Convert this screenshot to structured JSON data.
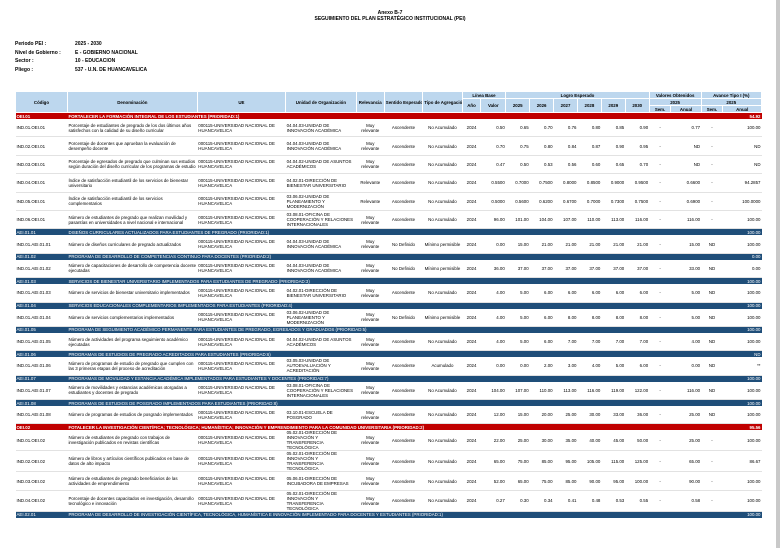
{
  "header": {
    "annex": "Anexo B-7",
    "title": "SEGUIMIENTO DEL PLAN ESTRATÉGICO INSTITUCIONAL (PEI)"
  },
  "meta": [
    {
      "k": "Periodo PEI :",
      "v": "2025 - 2030"
    },
    {
      "k": "Nivel de Gobierno :",
      "v": "E - GOBIERNO NACIONAL"
    },
    {
      "k": "Sector :",
      "v": "10 - EDUCACION"
    },
    {
      "k": "Pliego :",
      "v": "537 - U.N. DE HUANCAVELICA"
    }
  ],
  "columns": {
    "codigo": "Código",
    "denominacion": "Denominación",
    "ue": "UE",
    "unidad": "Unidad de Organización",
    "relevancia": "Relevancia",
    "sentido": "Sentido Esperado",
    "tipo": "Tipo de Agregación",
    "linea_base": "Línea Base",
    "anio": "Año",
    "valor": "Valor",
    "logro": "Logro Esperado",
    "years": [
      "2025",
      "2026",
      "2027",
      "2028",
      "2029",
      "2030"
    ],
    "valores_obtenidos": "Valores Obtenidos",
    "avance": "Avance Tipo I (%)",
    "y2025a": "2025",
    "y2025b": "2025",
    "sem": "Sem.",
    "anual": "Anual",
    "sem2": "Sem.",
    "anual2": "Anual"
  },
  "rows": [
    {
      "t": "sec",
      "code": "OEI.01",
      "text": "FORTALECER LA FORMACIÓN INTEGRAL DE LOS ESTUDIANTES (PRIORIDAD:1)",
      "last": "54.92"
    },
    {
      "t": "row",
      "code": "IND.01.OEI.01",
      "den": "Porcentaje de estudiantes de pregrado de los dos últimos años satisfechos con la calidad de su diseño curricular",
      "ue": "000115-UNIVERSIDAD NACIONAL DE HUANCAVELICA",
      "uo": "04.04.03-UNIDAD DE INNOVACIÓN ACADÉMICA",
      "rel": "Muy relevante",
      "sen": "Ascendente",
      "tipo": "No Acumulado",
      "anio": "2024",
      "val": "0.50",
      "v": [
        "0.65",
        "0.70",
        "0.76",
        "0.80",
        "0.85",
        "0.90"
      ],
      "s1": "-",
      "a1": "0.77",
      "s2": "-",
      "a2": "100.00"
    },
    {
      "t": "row",
      "code": "IND.02.OEI.01",
      "den": "Porcentaje de docentes que aprueban la evaluación de desempeño docente",
      "ue": "000115-UNIVERSIDAD NACIONAL DE HUANCAVELICA",
      "uo": "04.04.03-UNIDAD DE INNOVACIÓN ACADÉMICA",
      "rel": "Muy relevante",
      "sen": "Ascendente",
      "tipo": "No Acumulado",
      "anio": "2024",
      "val": "0.70",
      "v": [
        "0.75",
        "0.80",
        "0.84",
        "0.87",
        "0.90",
        "0.95"
      ],
      "s1": "-",
      "a1": "ND",
      "s2": "-",
      "a2": "ND"
    },
    {
      "t": "row",
      "code": "IND.03.OEI.01",
      "den": "Porcentaje de egresados de pregrado que culminan sus estudios según duración del diseño curricular de los programas de estudio",
      "ue": "000115-UNIVERSIDAD NACIONAL DE HUANCAVELICA",
      "uo": "04.04.02-UNIDAD DE ASUNTOS ACADÉMICOS",
      "rel": "Muy relevante",
      "sen": "Ascendente",
      "tipo": "No Acumulado",
      "anio": "2024",
      "val": "0.47",
      "v": [
        "0.50",
        "0.53",
        "0.56",
        "0.60",
        "0.65",
        "0.70"
      ],
      "s1": "-",
      "a1": "ND",
      "s2": "-",
      "a2": "ND"
    },
    {
      "t": "row",
      "code": "IND.04.OEI.01",
      "den": "Índice de satisfacción estudiantil de los servicios de bienestar universitario",
      "ue": "000115-UNIVERSIDAD NACIONAL DE HUANCAVELICA",
      "uo": "04.02.01-DIRECCIÓN DE BIENESTAR UNIVERSITARIO",
      "rel": "Relevante",
      "sen": "Ascendente",
      "tipo": "No Acumulado",
      "anio": "2024",
      "val": "0.5500",
      "v": [
        "0.7000",
        "0.7500",
        "0.8000",
        "0.8500",
        "0.9000",
        "0.9500"
      ],
      "s1": "-",
      "a1": "0.6600",
      "s2": "-",
      "a2": "94.2857"
    },
    {
      "t": "row",
      "code": "IND.05.OEI.01",
      "den": "Índice de satisfacción estudiantil de los servicios complementarios",
      "ue": "000115-UNIVERSIDAD NACIONAL DE HUANCAVELICA",
      "uo": "03.06.02-UNIDAD DE PLANEAMIENTO Y MODERNIZACIÓN",
      "rel": "Relevante",
      "sen": "Ascendente",
      "tipo": "No Acumulado",
      "anio": "2024",
      "val": "0.5000",
      "v": [
        "0.5600",
        "0.6200",
        "0.6700",
        "0.7000",
        "0.7300",
        "0.7500"
      ],
      "s1": "-",
      "a1": "0.6900",
      "s2": "-",
      "a2": "100.0000"
    },
    {
      "t": "row",
      "code": "IND.06.OEI.01",
      "den": "Número de estudiantes de pregrado que realizan movilidad y pasantías en universidades a nivel nacional e internacional",
      "ue": "000115-UNIVERSIDAD NACIONAL DE HUANCAVELICA",
      "uo": "03.08.01-OFICINA DE COOPERACIÓN Y RELACIONES INTERNACIONALES",
      "rel": "Muy relevante",
      "sen": "Ascendente",
      "tipo": "No Acumulado",
      "anio": "2024",
      "val": "96.00",
      "v": [
        "101.00",
        "104.00",
        "107.00",
        "110.00",
        "113.00",
        "116.00"
      ],
      "s1": "-",
      "a1": "116.00",
      "s2": "-",
      "a2": "100.00"
    },
    {
      "t": "aei",
      "code": "AEI.01.01",
      "text": "DISEÑOS CURRICULARES ACTUALIZADOS PARA ESTUDIANTES DE PREGRADO (PRIORIDAD:1)",
      "last": "100.00"
    },
    {
      "t": "row",
      "code": "IND.01.AEI.01.01",
      "den": "Número de diseños curriculares de pregrado actualizados",
      "ue": "000115-UNIVERSIDAD NACIONAL DE HUANCAVELICA",
      "uo": "04.04.03-UNIDAD DE INNOVACIÓN ACADÉMICA",
      "rel": "Muy relevante",
      "sen": "No Definido",
      "tipo": "Mínimo permisible",
      "anio": "2024",
      "val": "0.00",
      "v": [
        "15.00",
        "21.00",
        "21.00",
        "21.00",
        "21.00",
        "21.00"
      ],
      "s1": "-",
      "a1": "15.00",
      "s2": "ND",
      "a2": "100.00"
    },
    {
      "t": "aei",
      "code": "AEI.01.02",
      "text": "PROGRAMA DE DESARROLLO DE COMPETENCIAS CONTINUO PARA DOCENTES (PRIORIDAD:2)",
      "last": "0.00"
    },
    {
      "t": "row",
      "code": "IND.01.AEI.01.02",
      "den": "Número de capacitaciones de desarrollo de competencia docente ejecutadas",
      "ue": "000115-UNIVERSIDAD NACIONAL DE HUANCAVELICA",
      "uo": "04.04.03-UNIDAD DE INNOVACIÓN ACADÉMICA",
      "rel": "Muy relevante",
      "sen": "No Definido",
      "tipo": "Mínimo permisible",
      "anio": "2024",
      "val": "36.00",
      "v": [
        "37.00",
        "37.00",
        "37.00",
        "37.00",
        "37.00",
        "37.00"
      ],
      "s1": "-",
      "a1": "33.00",
      "s2": "ND",
      "a2": "0.00"
    },
    {
      "t": "aei",
      "code": "AEI.01.03",
      "text": "SERVICIOS DE BIENESTAR UNIVERSITARIO IMPLEMENTADOS PARA ESTUDIANTES DE PREGRADO (PRIORIDAD:3)",
      "last": "100.00"
    },
    {
      "t": "row",
      "code": "IND.01.AEI.01.03",
      "den": "Número de servicios de bienestar universitario implementados",
      "ue": "000115-UNIVERSIDAD NACIONAL DE HUANCAVELICA",
      "uo": "04.02.01-DIRECCIÓN DE BIENESTAR UNIVERSITARIO",
      "rel": "Muy relevante",
      "sen": "Ascendente",
      "tipo": "No Acumulado",
      "anio": "2024",
      "val": "4.00",
      "v": [
        "5.00",
        "6.00",
        "6.00",
        "6.00",
        "6.00",
        "6.00"
      ],
      "s1": "-",
      "a1": "5.00",
      "s2": "ND",
      "a2": "100.00"
    },
    {
      "t": "aei",
      "code": "AEI.01.04",
      "text": "SERVICIOS EDUCACIONALES COMPLEMENTARIOS IMPLEMENTADOS PARA ESTUDIANTES (PRIORIDAD:4)",
      "last": "100.00"
    },
    {
      "t": "row",
      "code": "IND.01.AEI.01.04",
      "den": "Número de servicios complementarios implementados",
      "ue": "000115-UNIVERSIDAD NACIONAL DE HUANCAVELICA",
      "uo": "03.06.02-UNIDAD DE PLANEAMIENTO Y MODERNIZACIÓN",
      "rel": "Muy relevante",
      "sen": "No Definido",
      "tipo": "Mínimo permisible",
      "anio": "2024",
      "val": "4.00",
      "v": [
        "5.00",
        "6.00",
        "8.00",
        "8.00",
        "8.00",
        "8.00"
      ],
      "s1": "-",
      "a1": "5.00",
      "s2": "ND",
      "a2": "100.00"
    },
    {
      "t": "aei",
      "code": "AEI.01.05",
      "text": "PROGRAMA DE SEGUIMIENTO ACADÉMICO PERMANENTE PARA ESTUDIANTES DE PREGRADO, EGRESADOS Y GRADUADOS (PRIORIDAD:5)",
      "last": "100.00"
    },
    {
      "t": "row",
      "code": "IND.01.AEI.01.05",
      "den": "Número de actividades del programa seguimiento académico ejecutadas",
      "ue": "000115-UNIVERSIDAD NACIONAL DE HUANCAVELICA",
      "uo": "04.04.02-UNIDAD DE ASUNTOS ACADÉMICOS",
      "rel": "Muy relevante",
      "sen": "Ascendente",
      "tipo": "No Acumulado",
      "anio": "2024",
      "val": "4.00",
      "v": [
        "5.00",
        "6.00",
        "7.00",
        "7.00",
        "7.00",
        "7.00"
      ],
      "s1": "-",
      "a1": "4.00",
      "s2": "ND",
      "a2": "100.00"
    },
    {
      "t": "aei",
      "code": "AEI.01.06",
      "text": "PROGRAMAS DE ESTUDIOS DE PREGRADO ACREDITADOS PARA ESTUDIANTES (PRIORIDAD:6)",
      "last": "ND"
    },
    {
      "t": "row",
      "code": "IND.01.AEI.01.06",
      "den": "Número de programas de estudio de pregrado que cumplen con las 3 primeras etapas del proceso de acreditación",
      "ue": "000115-UNIVERSIDAD NACIONAL DE HUANCAVELICA",
      "uo": "03.05.03-UNIDAD DE AUTOEVALUACIÓN Y ACREDITACIÓN",
      "rel": "Muy relevante",
      "sen": "Ascendente",
      "tipo": "Acumulado",
      "anio": "2024",
      "val": "0.00",
      "v": [
        "0.00",
        "2.00",
        "3.00",
        "4.00",
        "5.00",
        "6.00"
      ],
      "s1": "-",
      "a1": "0.00",
      "s2": "ND",
      "a2": "**"
    },
    {
      "t": "aei",
      "code": "AEI.01.07",
      "text": "PROGRAMAS DE MOVILIDAD Y ESTANCIA ACADÉMICA IMPLEMENTADOS PARA ESTUDIANTES Y DOCENTES (PRIORIDAD:7)",
      "last": "100.00"
    },
    {
      "t": "row",
      "code": "IND.01.AEI.01.07",
      "den": "Número de movilidades y estancias académicas otorgadas a estudiantes y docentes de pregrado",
      "ue": "000115-UNIVERSIDAD NACIONAL DE HUANCAVELICA",
      "uo": "03.08.01-OFICINA DE COOPERACIÓN Y RELACIONES INTERNACIONALES",
      "rel": "Muy relevante",
      "sen": "Ascendente",
      "tipo": "No Acumulado",
      "anio": "2024",
      "val": "104.00",
      "v": [
        "107.00",
        "110.00",
        "113.00",
        "116.00",
        "119.00",
        "122.00"
      ],
      "s1": "-",
      "a1": "116.00",
      "s2": "ND",
      "a2": "100.00"
    },
    {
      "t": "aei",
      "code": "AEI.01.08",
      "text": "PROGRAMAS DE ESTUDIOS DE POSGRADO IMPLEMENTADOS PARA ESTUDIANTES (PRIORIDAD:8)",
      "last": "100.00"
    },
    {
      "t": "row",
      "code": "IND.01.AEI.01.08",
      "den": "Número de programas de estudios de posgrado implementados",
      "ue": "000115-UNIVERSIDAD NACIONAL DE HUANCAVELICA",
      "uo": "03.10.01-ESCUELA DE POSGRADO",
      "rel": "Muy relevante",
      "sen": "Ascendente",
      "tipo": "No Acumulado",
      "anio": "2024",
      "val": "12.00",
      "v": [
        "15.00",
        "20.00",
        "25.00",
        "30.00",
        "33.00",
        "36.00"
      ],
      "s1": "-",
      "a1": "25.00",
      "s2": "ND",
      "a2": "100.00"
    },
    {
      "t": "sec",
      "code": "OEI.02",
      "text": "FOTALECER LA INVESTIGACIÓN CIENTÍFICA; TECNOLÓGICA; HUMANÍSTICA; INNOVACIÓN Y EMPRENDIMIENTO PARA LA COMUNIDAD UNIVERSITARIA (PRIORIDAD:2)",
      "last": "95.56"
    },
    {
      "t": "row",
      "code": "IND.01.OEI.02",
      "den": "Número de estudiantes de pregrado con trabajos de investigación publicados en revistas científicas",
      "ue": "000115-UNIVERSIDAD NACIONAL DE HUANCAVELICA",
      "uo": "05.02.01-DIRECCIÓN DE INNOVACIÓN Y TRANSFERENCIA TECNOLÓGICA",
      "rel": "Muy relevante",
      "sen": "Ascendente",
      "tipo": "No Acumulado",
      "anio": "2024",
      "val": "22.00",
      "v": [
        "25.00",
        "30.00",
        "35.00",
        "40.00",
        "45.00",
        "50.00"
      ],
      "s1": "-",
      "a1": "25.00",
      "s2": "-",
      "a2": "100.00"
    },
    {
      "t": "row",
      "code": "IND.02.OEI.02",
      "den": "Número de libros y artículos científicos publicados en base de datos de alto impacto",
      "ue": "000115-UNIVERSIDAD NACIONAL DE HUANCAVELICA",
      "uo": "05.02.01-DIRECCIÓN DE INNOVACIÓN Y TRANSFERENCIA TECNOLÓGICA",
      "rel": "Muy relevante",
      "sen": "Ascendente",
      "tipo": "No Acumulado",
      "anio": "2024",
      "val": "65.00",
      "v": [
        "75.00",
        "85.00",
        "95.00",
        "105.00",
        "115.00",
        "125.00"
      ],
      "s1": "-",
      "a1": "65.00",
      "s2": "-",
      "a2": "86.67"
    },
    {
      "t": "row",
      "code": "IND.03.OEI.02",
      "den": "Número de estudiantes de pregrado beneficiarios de las actividades de emprendimiento",
      "ue": "000115-UNIVERSIDAD NACIONAL DE HUANCAVELICA",
      "uo": "05.06.01-DIRECCIÓN DE INCUBADORA DE EMPRESAS",
      "rel": "Muy relevante",
      "sen": "Ascendente",
      "tipo": "No Acumulado",
      "anio": "2024",
      "val": "52.00",
      "v": [
        "65.00",
        "75.00",
        "85.00",
        "90.00",
        "95.00",
        "100.00"
      ],
      "s1": "-",
      "a1": "90.00",
      "s2": "-",
      "a2": "100.00"
    },
    {
      "t": "row",
      "code": "IND.04.OEI.02",
      "den": "Porcentaje de docentes capacitados en investigación, desarrollo tecnológico e innovación",
      "ue": "000115-UNIVERSIDAD NACIONAL DE HUANCAVELICA",
      "uo": "05.02.01-DIRECCIÓN DE INNOVACIÓN Y TRANSFERENCIA TECNOLÓGICA",
      "rel": "Muy relevante",
      "sen": "Ascendente",
      "tipo": "No Acumulado",
      "anio": "2024",
      "val": "0.27",
      "v": [
        "0.30",
        "0.34",
        "0.41",
        "0.48",
        "0.53",
        "0.55"
      ],
      "s1": "-",
      "a1": "0.58",
      "s2": "-",
      "a2": "100.00"
    },
    {
      "t": "aei",
      "code": "AEI.02.01",
      "text": "PROGRAMA DE DESARROLLO DE INVESTIGACIÓN CIENTÍFICA, TECNOLÓGICA, HUMANÍSTICA E INNOVACIÓN IMPLEMENTADO PARA DOCENTES Y ESTUDIANTES (PRIORIDAD:1)",
      "last": "100.00"
    }
  ]
}
